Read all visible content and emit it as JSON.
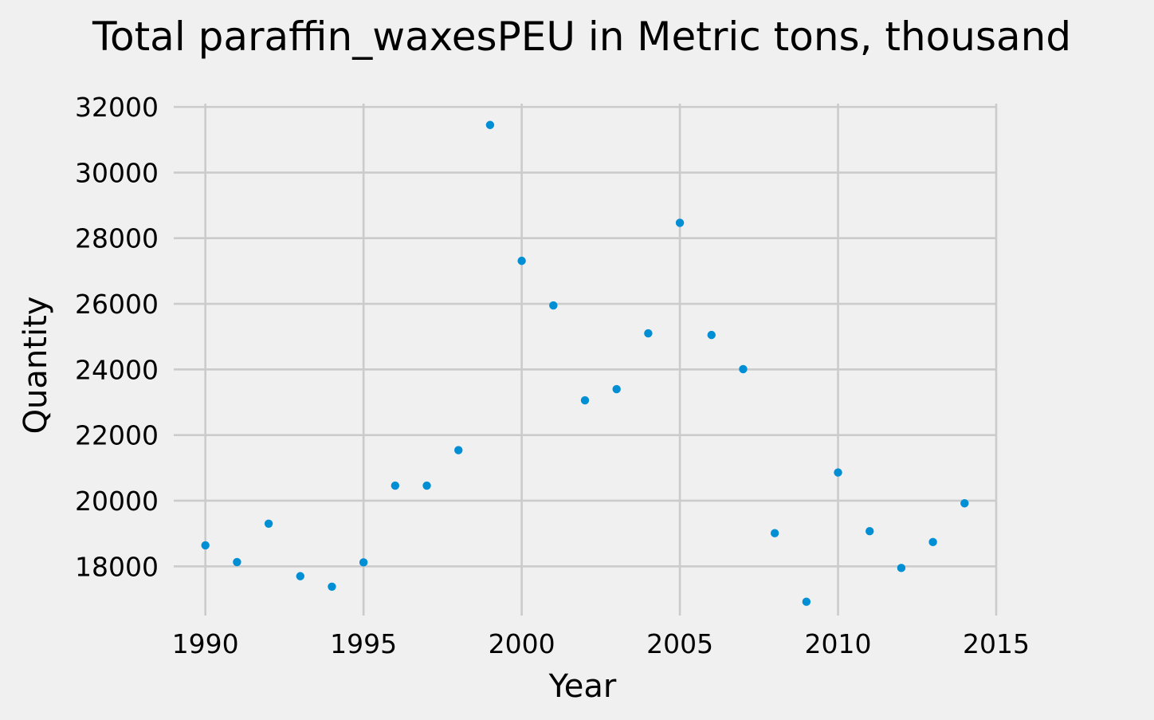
{
  "chart_data": {
    "type": "scatter",
    "title": "Total paraffin_waxesPEU in Metric tons,  thousand",
    "xlabel": "Year",
    "ylabel": "Quantity",
    "xlim": [
      1989,
      2015
    ],
    "ylim": [
      16500,
      32100
    ],
    "x_ticks": [
      1990,
      1995,
      2000,
      2005,
      2010,
      2015
    ],
    "y_ticks": [
      18000,
      20000,
      22000,
      24000,
      26000,
      28000,
      30000,
      32000
    ],
    "grid": true,
    "color": "#008fd5",
    "series": [
      {
        "x": [
          1990,
          1991,
          1992,
          1993,
          1994,
          1995,
          1996,
          1997,
          1998,
          1999,
          2000,
          2001,
          2002,
          2003,
          2004,
          2005,
          2006,
          2007,
          2008,
          2009,
          2010,
          2011,
          2012,
          2013,
          2014
        ],
        "y": [
          18640,
          18130,
          19300,
          17700,
          17380,
          18120,
          20460,
          20460,
          21540,
          31450,
          27310,
          25950,
          23060,
          23400,
          25100,
          28470,
          25050,
          24010,
          19010,
          16920,
          20860,
          19070,
          17950,
          18740,
          19920
        ]
      }
    ]
  }
}
